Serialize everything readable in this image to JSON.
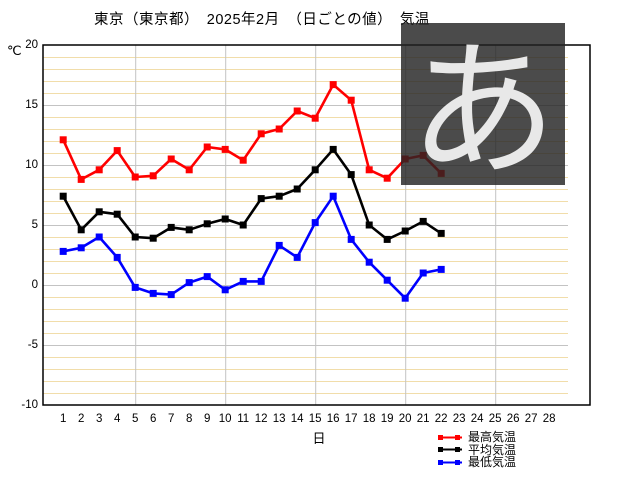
{
  "title": "東京（東京都）　2025年2月　（日ごとの値）　気温",
  "y_axis": {
    "unit_label": "℃",
    "ticks": [
      20,
      15,
      10,
      5,
      0,
      -5,
      -10
    ]
  },
  "x_axis": {
    "label": "日",
    "ticks": [
      1,
      2,
      3,
      4,
      5,
      6,
      7,
      8,
      9,
      10,
      11,
      12,
      13,
      14,
      15,
      16,
      17,
      18,
      19,
      20,
      21,
      22,
      23,
      24,
      25,
      26,
      27,
      28
    ]
  },
  "legend": [
    {
      "label": "最高気温",
      "color": "#ff0000"
    },
    {
      "label": "平均気温",
      "color": "#000000"
    },
    {
      "label": "最低気温",
      "color": "#0000ff"
    }
  ],
  "ime_overlay": {
    "char": "あ"
  },
  "chart_data": {
    "type": "line",
    "title": "東京（東京都）　2025年2月　（日ごとの値）　気温",
    "xlabel": "日",
    "ylabel": "℃",
    "xlim": [
      1,
      28
    ],
    "ylim": [
      -10,
      20
    ],
    "grid": {
      "major_every_deg": 5,
      "minor_every_deg": 1,
      "vertical_major_days": [
        5,
        10,
        15,
        20,
        25
      ]
    },
    "legend_position": "bottom-right",
    "x": [
      1,
      2,
      3,
      4,
      5,
      6,
      7,
      8,
      9,
      10,
      11,
      12,
      13,
      14,
      15,
      16,
      17,
      18,
      19,
      20,
      21,
      22
    ],
    "series": [
      {
        "name": "最高気温",
        "color": "#ff0000",
        "values": [
          12.1,
          8.8,
          9.6,
          11.2,
          9.0,
          9.1,
          10.5,
          9.6,
          11.5,
          11.3,
          10.4,
          12.6,
          13.0,
          14.5,
          13.9,
          16.7,
          15.4,
          9.6,
          8.9,
          10.5,
          10.8,
          9.3
        ]
      },
      {
        "name": "平均気温",
        "color": "#000000",
        "values": [
          7.4,
          4.6,
          6.1,
          5.9,
          4.0,
          3.9,
          4.8,
          4.6,
          5.1,
          5.5,
          5.0,
          7.2,
          7.4,
          8.0,
          9.6,
          11.3,
          9.2,
          5.0,
          3.8,
          4.5,
          5.3,
          4.3
        ]
      },
      {
        "name": "最低気温",
        "color": "#0000ff",
        "values": [
          2.8,
          3.1,
          4.0,
          2.3,
          -0.2,
          -0.7,
          -0.8,
          0.2,
          0.7,
          -0.4,
          0.3,
          0.3,
          3.3,
          2.3,
          5.2,
          7.4,
          3.8,
          1.9,
          0.4,
          -1.1,
          1.0,
          1.3
        ]
      }
    ]
  }
}
